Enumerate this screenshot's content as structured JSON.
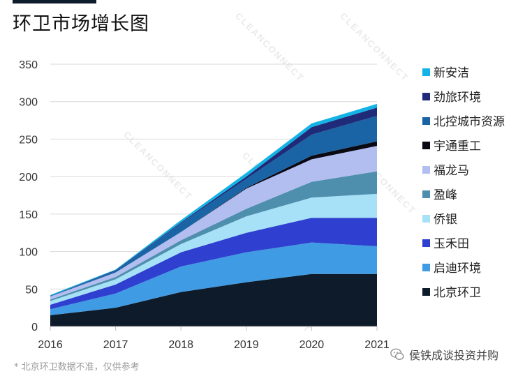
{
  "title": "环卫市场增长图",
  "footnote": "* 北京环卫数据不准，仅供参考",
  "source_badge": "侯铁成谈投资并购",
  "watermark": "CLEANCONNECT",
  "colors": {
    "北京环卫": "#0d1b2a",
    "启迪环境": "#3f9be3",
    "玉禾田": "#2f3fcf",
    "侨银": "#a6e1f7",
    "盈峰": "#4e8fad",
    "福龙马": "#b2bdf0",
    "宇通重工": "#0a0a14",
    "北控城市资源": "#1a64a5",
    "劲旅环境": "#1f2a78",
    "新安洁": "#14b3e6"
  },
  "chart_data": {
    "type": "area",
    "stacked": true,
    "title": "环卫市场增长图",
    "x": [
      "2016",
      "2017",
      "2018",
      "2019",
      "2020",
      "2021"
    ],
    "ylim": [
      0,
      350
    ],
    "yticks": [
      0,
      50,
      100,
      150,
      200,
      250,
      300,
      350
    ],
    "grid": true,
    "legend_position": "right",
    "series": [
      {
        "name": "北京环卫",
        "values": [
          15,
          25,
          46,
          59,
          70,
          70
        ]
      },
      {
        "name": "启迪环境",
        "values": [
          8,
          19,
          34,
          40,
          42,
          37
        ]
      },
      {
        "name": "玉禾田",
        "values": [
          6,
          12,
          19,
          26,
          33,
          38
        ]
      },
      {
        "name": "侨银",
        "values": [
          5,
          7,
          11,
          22,
          27,
          32
        ]
      },
      {
        "name": "盈峰",
        "values": [
          2,
          3,
          5,
          10,
          21,
          30
        ]
      },
      {
        "name": "福龙马",
        "values": [
          4,
          6,
          11,
          27,
          30,
          34
        ]
      },
      {
        "name": "宇通重工",
        "values": [
          0,
          0,
          0,
          1,
          5,
          6
        ]
      },
      {
        "name": "北控城市资源",
        "values": [
          1,
          2,
          12,
          12,
          28,
          34
        ]
      },
      {
        "name": "劲旅环境",
        "values": [
          0,
          1,
          1,
          3,
          10,
          11
        ]
      },
      {
        "name": "新安洁",
        "values": [
          1,
          1,
          3,
          5,
          5,
          5
        ]
      }
    ],
    "legend_order": [
      "新安洁",
      "劲旅环境",
      "北控城市资源",
      "宇通重工",
      "福龙马",
      "盈峰",
      "侨银",
      "玉禾田",
      "启迪环境",
      "北京环卫"
    ]
  }
}
